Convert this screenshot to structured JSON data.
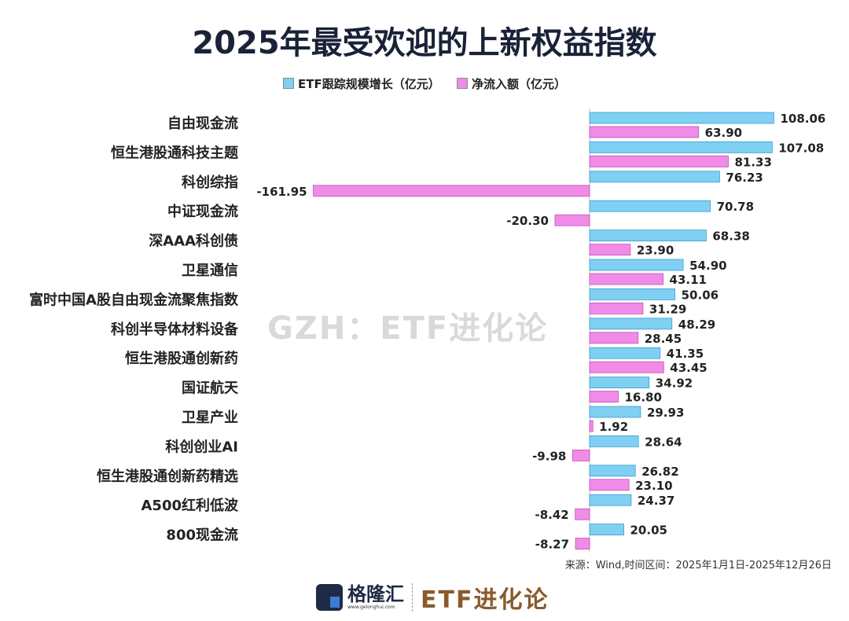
{
  "chart_data": {
    "type": "bar",
    "orientation": "horizontal",
    "title": "2025年最受欢迎的上新权益指数",
    "categories": [
      "自由现金流",
      "恒生港股通科技主题",
      "科创综指",
      "中证现金流",
      "深AAA科创债",
      "卫星通信",
      "富时中国A股自由现金流聚焦指数",
      "科创半导体材料设备",
      "恒生港股通创新药",
      "国证航天",
      "卫星产业",
      "科创创业AI",
      "恒生港股通创新药精选",
      "A500红利低波",
      "800现金流"
    ],
    "series": [
      {
        "name": "ETF跟踪规模增长（亿元）",
        "color": "#7fd0f2",
        "values": [
          108.06,
          107.08,
          76.23,
          70.78,
          68.38,
          54.9,
          50.06,
          48.29,
          41.35,
          34.92,
          29.93,
          28.64,
          26.82,
          24.37,
          20.05
        ]
      },
      {
        "name": "净流入额（亿元）",
        "color": "#f08ce8",
        "values": [
          63.9,
          81.33,
          -161.95,
          -20.3,
          23.9,
          43.11,
          31.29,
          28.45,
          43.45,
          16.8,
          1.92,
          -9.98,
          23.1,
          -8.42,
          -8.27
        ]
      }
    ],
    "xlim": [
      -170,
      125
    ],
    "legend_position": "top",
    "grid": false,
    "data_labels": true
  },
  "watermark": "GZH：ETF进化论",
  "source": "来源：Wind,时间区间：2025年1月1日-2025年12月26日",
  "logo": {
    "name": "格隆汇",
    "url": "www.gelonghui.com",
    "brand": "ETF进化论"
  }
}
